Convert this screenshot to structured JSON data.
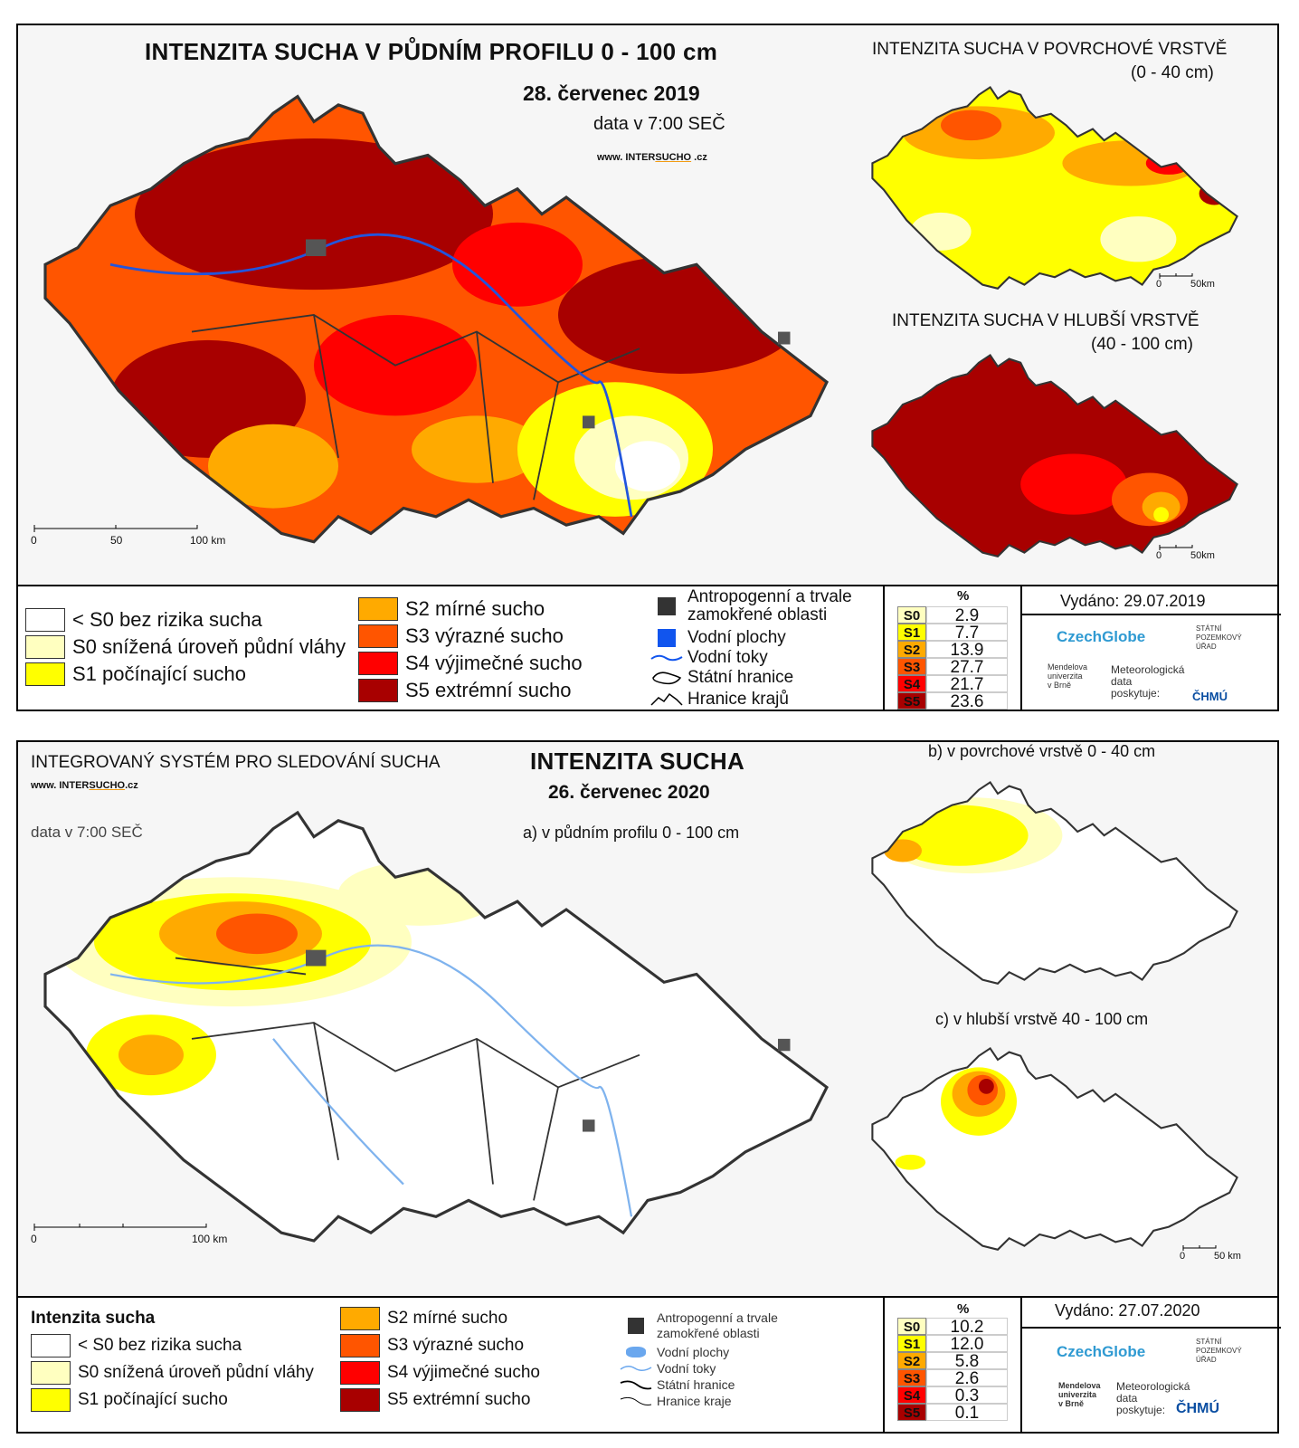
{
  "map1": {
    "title": "INTENZITA SUCHA V PŮDNÍM PROFILU 0 - 100 cm",
    "date": "28. červenec 2019",
    "data_time": "data v 7:00 SEČ",
    "website_prefix": "www. INTER",
    "website_brand": "SUCHO",
    "website_suffix": " .cz",
    "inset_top_title": "INTENZITA SUCHA V POVRCHOVÉ VRSTVĚ",
    "inset_top_range": "(0 - 40 cm)",
    "inset_bottom_title": "INTENZITA SUCHA V HLUBŠÍ VRSTVĚ",
    "inset_bottom_range": "(40 - 100 cm)",
    "scale_labels": [
      "0",
      "50",
      "100 km"
    ],
    "inset_scale_labels": [
      "0",
      "50km"
    ],
    "legend": [
      {
        "label": "< S0 bez rizika sucha",
        "color": "#ffffff"
      },
      {
        "label": "S0 snížená úroveň půdní vláhy",
        "color": "#ffffc0"
      },
      {
        "label": "S1 počínající sucho",
        "color": "#ffff00"
      },
      {
        "label": "S2 mírné sucho",
        "color": "#ffaa00"
      },
      {
        "label": "S3 výrazné sucho",
        "color": "#ff5500"
      },
      {
        "label": "S4 výjimečné sucho",
        "color": "#ff0000"
      },
      {
        "label": "S5 extrémní sucho",
        "color": "#a80000"
      }
    ],
    "symbols": {
      "anthropogenic_line1": "Antropogenní a trvale",
      "anthropogenic_line2": "zamokřené oblasti",
      "water_bodies": "Vodní plochy",
      "water_streams": "Vodní toky",
      "state_border": "Státní hranice",
      "region_border": "Hranice krajů"
    },
    "pct_header": "%",
    "pct": [
      {
        "label": "S0",
        "value": "2.9",
        "color": "#ffffc0"
      },
      {
        "label": "S1",
        "value": "7.7",
        "color": "#ffff00"
      },
      {
        "label": "S2",
        "value": "13.9",
        "color": "#ffaa00"
      },
      {
        "label": "S3",
        "value": "27.7",
        "color": "#ff5500"
      },
      {
        "label": "S4",
        "value": "21.7",
        "color": "#ff0000"
      },
      {
        "label": "S5",
        "value": "23.6",
        "color": "#a80000"
      }
    ],
    "issued": "Vydáno: 29.07.2019",
    "logos": {
      "czechglobe": "CzechGlobe",
      "spu_line1": "STÁTNÍ",
      "spu_line2": "POZEMKOVÝ",
      "spu_line3": "ÚŘAD",
      "mendel_line1": "Mendelova",
      "mendel_line2": "univerzita",
      "mendel_line3": "v Brně",
      "meteo_line1": "Meteorologická",
      "meteo_line2": "data",
      "meteo_line3": "poskytuje:",
      "chmu": "ČHMÚ"
    }
  },
  "map2": {
    "system_title": "INTEGROVANÝ SYSTÉM PRO SLEDOVÁNÍ SUCHA",
    "website_prefix": "www. INTER",
    "website_brand": "SUCHO",
    "website_suffix": ".cz",
    "data_time": "data v 7:00 SEČ",
    "title": "INTENZITA SUCHA",
    "date": "26. červenec 2020",
    "main_subtitle": "a) v půdním profilu 0 - 100 cm",
    "inset_top_title": "b) v povrchové vrstvě 0 - 40 cm",
    "inset_bottom_title": "c) v hlubší vrstvě 40 - 100 cm",
    "scale_labels": [
      "0",
      "100 km"
    ],
    "inset_scale_labels": [
      "0",
      "50 km"
    ],
    "legend_title": "Intenzita sucha",
    "legend": [
      {
        "label": "< S0 bez rizika sucha",
        "color": "#ffffff"
      },
      {
        "label": "S0 snížená úroveň půdní vláhy",
        "color": "#ffffc0"
      },
      {
        "label": "S1 počínající sucho",
        "color": "#ffff00"
      },
      {
        "label": "S2 mírné sucho",
        "color": "#ffaa00"
      },
      {
        "label": "S3 výrazné sucho",
        "color": "#ff5500"
      },
      {
        "label": "S4 výjimečné sucho",
        "color": "#ff0000"
      },
      {
        "label": "S5 extrémní sucho",
        "color": "#a80000"
      }
    ],
    "symbols": {
      "anthropogenic_line1": "Antropogenní a trvale",
      "anthropogenic_line2": "zamokřené oblasti",
      "water_bodies": "Vodní plochy",
      "water_streams": "Vodní toky",
      "state_border": "Státní hranice",
      "region_border": "Hranice kraje"
    },
    "pct_header": "%",
    "pct": [
      {
        "label": "S0",
        "value": "10.2",
        "color": "#ffffc0"
      },
      {
        "label": "S1",
        "value": "12.0",
        "color": "#ffff00"
      },
      {
        "label": "S2",
        "value": "5.8",
        "color": "#ffaa00"
      },
      {
        "label": "S3",
        "value": "2.6",
        "color": "#ff5500"
      },
      {
        "label": "S4",
        "value": "0.3",
        "color": "#ff0000"
      },
      {
        "label": "S5",
        "value": "0.1",
        "color": "#a80000"
      }
    ],
    "issued": "Vydáno: 27.07.2020",
    "logos": {
      "czechglobe": "CzechGlobe",
      "spu_line1": "STÁTNÍ",
      "spu_line2": "POZEMKOVÝ",
      "spu_line3": "ÚŘAD",
      "mendel_line1": "Mendelova",
      "mendel_line2": "univerzita",
      "mendel_line3": "v Brně",
      "meteo_line1": "Meteorologická",
      "meteo_line2": "data",
      "meteo_line3": "poskytuje:",
      "chmu": "ČHMÚ"
    }
  }
}
